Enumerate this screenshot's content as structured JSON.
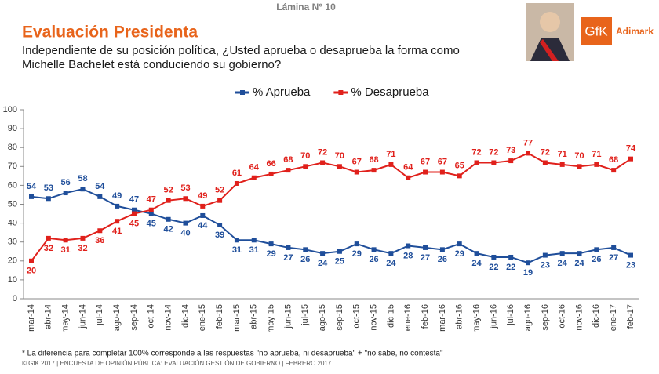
{
  "page_label": "Lámina N° 10",
  "logo": {
    "brand": "GfK",
    "partner": "Adimark"
  },
  "footnote": "* La diferencia para completar 100% corresponde a las respuestas \"no aprueba, ni desaprueba\" + \"no sabe, no contesta\"",
  "copyright": "© GfK 2017 | ENCUESTA DE OPINIÓN PÚBLICA: EVALUACIÓN GESTIÓN DE GOBIERNO | FEBRERO 2017",
  "chart_data": {
    "type": "line",
    "title": "Evaluación Presidenta",
    "subtitle": [
      "Independiente de su posición política, ¿Usted aprueba o desaprueba la forma como",
      "Michelle Bachelet está conduciendo su gobierno?"
    ],
    "categories": [
      "mar-14",
      "abr-14",
      "may-14",
      "jun-14",
      "jul-14",
      "ago-14",
      "sep-14",
      "oct-14",
      "nov-14",
      "dic-14",
      "ene-15",
      "feb-15",
      "mar-15",
      "abr-15",
      "may-15",
      "jun-15",
      "jul-15",
      "ago-15",
      "sep-15",
      "oct-15",
      "nov-15",
      "dic-15",
      "ene-16",
      "feb-16",
      "mar-16",
      "abr-16",
      "may-16",
      "jun-16",
      "jul-16",
      "ago-16",
      "sep-16",
      "oct-16",
      "nov-16",
      "dic-16",
      "ene-17",
      "feb-17"
    ],
    "series": [
      {
        "name": "% Aprueba",
        "color": "#1f4e9a",
        "values": [
          54,
          53,
          56,
          58,
          54,
          49,
          47,
          45,
          42,
          40,
          44,
          39,
          31,
          31,
          29,
          27,
          26,
          24,
          25,
          29,
          26,
          24,
          28,
          27,
          26,
          29,
          24,
          22,
          22,
          19,
          23,
          24,
          24,
          26,
          27,
          23
        ]
      },
      {
        "name": "% Desaprueba",
        "color": "#e0201b",
        "values": [
          20,
          32,
          31,
          32,
          36,
          41,
          45,
          47,
          52,
          53,
          49,
          52,
          61,
          64,
          66,
          68,
          70,
          72,
          70,
          67,
          68,
          71,
          64,
          67,
          67,
          65,
          72,
          72,
          73,
          77,
          72,
          71,
          70,
          71,
          68,
          74
        ]
      }
    ],
    "ylim": [
      0,
      100
    ],
    "yticks": [
      0,
      10,
      20,
      30,
      40,
      50,
      60,
      70,
      80,
      90,
      100
    ],
    "legend": "top"
  }
}
